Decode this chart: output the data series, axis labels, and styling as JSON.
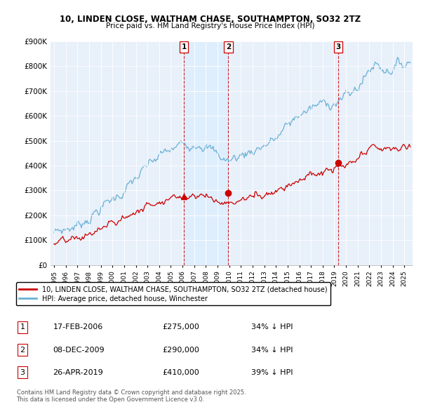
{
  "title": "10, LINDEN CLOSE, WALTHAM CHASE, SOUTHAMPTON, SO32 2TZ",
  "subtitle": "Price paid vs. HM Land Registry's House Price Index (HPI)",
  "ylim": [
    0,
    900000
  ],
  "yticks": [
    0,
    100000,
    200000,
    300000,
    400000,
    500000,
    600000,
    700000,
    800000,
    900000
  ],
  "ytick_labels": [
    "£0",
    "£100K",
    "£200K",
    "£300K",
    "£400K",
    "£500K",
    "£600K",
    "£700K",
    "£800K",
    "£900K"
  ],
  "hpi_color": "#6ab0d4",
  "price_color": "#cc0000",
  "vline_color": "#cc0000",
  "shade_color": "#ddeeff",
  "background_color": "#e8f0fa",
  "legend_label_price": "10, LINDEN CLOSE, WALTHAM CHASE, SOUTHAMPTON, SO32 2TZ (detached house)",
  "legend_label_hpi": "HPI: Average price, detached house, Winchester",
  "transactions": [
    {
      "num": 1,
      "date_str": "17-FEB-2006",
      "year": 2006.12,
      "price": 275000,
      "pct": "34%",
      "marker": "^"
    },
    {
      "num": 2,
      "date_str": "08-DEC-2009",
      "year": 2009.92,
      "price": 290000,
      "pct": "34%",
      "marker": "o"
    },
    {
      "num": 3,
      "date_str": "26-APR-2019",
      "year": 2019.32,
      "price": 410000,
      "pct": "39%",
      "marker": "o"
    }
  ],
  "footnote": "Contains HM Land Registry data © Crown copyright and database right 2025.\nThis data is licensed under the Open Government Licence v3.0.",
  "xlim_start": 1994.7,
  "xlim_end": 2025.7
}
